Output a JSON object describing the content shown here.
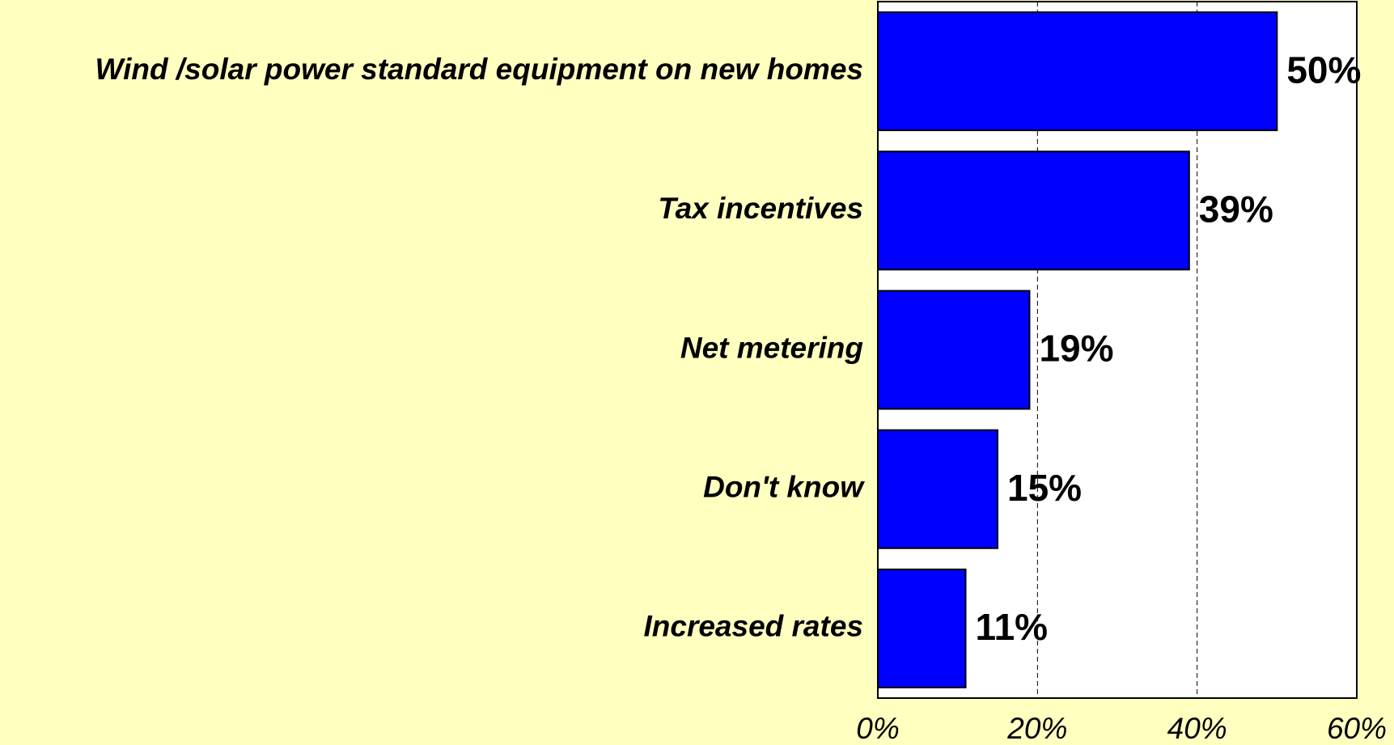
{
  "chart_data": {
    "type": "hbar",
    "categories": [
      "Wind /solar power standard equipment on new homes",
      "Tax incentives",
      "Net metering",
      "Don't know",
      "Increased rates"
    ],
    "values": [
      50,
      39,
      19,
      15,
      11
    ],
    "value_labels": [
      "50%",
      "39%",
      "19%",
      "15%",
      "11%"
    ],
    "color": "#0000ff",
    "xlim": [
      0,
      60
    ],
    "xticks": [
      {
        "value": 0,
        "label": "0%"
      },
      {
        "value": 20,
        "label": "20%"
      },
      {
        "value": 40,
        "label": "40%"
      },
      {
        "value": 60,
        "label": "60%"
      }
    ],
    "grid": true
  }
}
